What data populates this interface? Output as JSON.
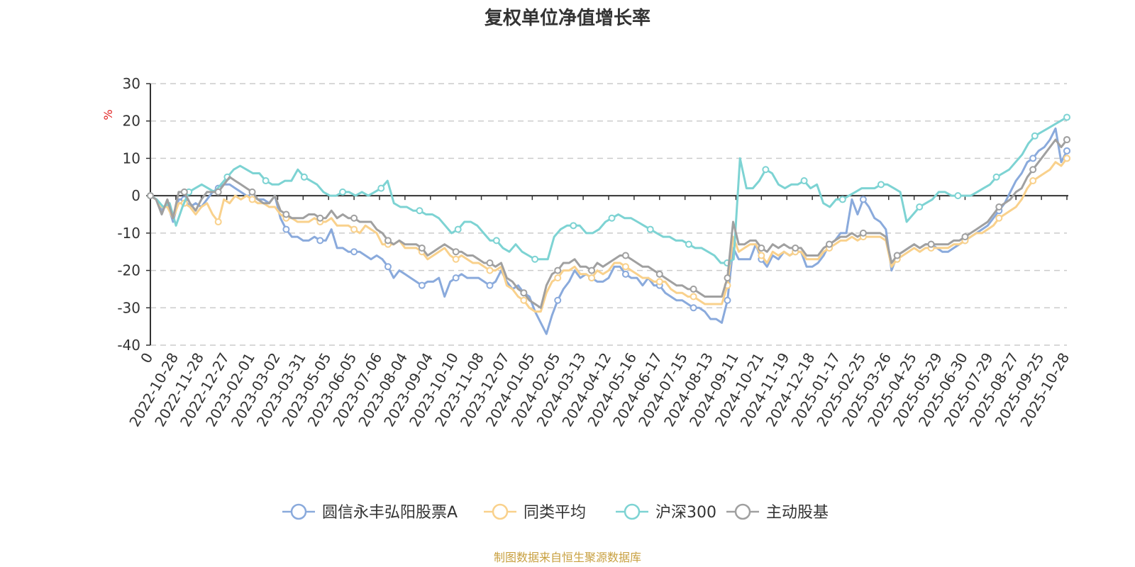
{
  "chart_data": {
    "type": "line",
    "title": "复权单位净值增长率",
    "ylabel": "%",
    "xlabel": "",
    "ylim": [
      -40,
      30
    ],
    "yticks": [
      30,
      20,
      10,
      0,
      -10,
      -20,
      -30,
      -40
    ],
    "x_tick_labels": [
      "0",
      "2022-10-28",
      "2022-11-28",
      "2022-12-27",
      "2023-02-01",
      "2023-03-02",
      "2023-03-31",
      "2023-05-05",
      "2023-06-05",
      "2023-07-06",
      "2023-08-04",
      "2023-09-04",
      "2023-10-10",
      "2023-11-08",
      "2023-12-07",
      "2024-01-05",
      "2024-02-05",
      "2024-03-13",
      "2024-04-12",
      "2024-05-16",
      "2024-06-17",
      "2024-07-15",
      "2024-08-13",
      "2024-09-11",
      "2024-10-21",
      "2024-11-19",
      "2024-12-18",
      "2025-01-17",
      "2025-02-25",
      "2025-03-26",
      "2025-04-25",
      "2025-05-29",
      "2025-06-30",
      "2025-07-29",
      "2025-08-27",
      "2025-09-25",
      "2025-10-28"
    ],
    "grid": true,
    "legend_position": "bottom",
    "series": [
      {
        "name": "圆信永丰弘阳股票A",
        "color": "#8aaadc",
        "values": [
          0,
          -1,
          -4,
          -2,
          -7,
          -1,
          -1,
          -3,
          -2,
          -3,
          -1,
          1,
          2,
          3,
          3,
          2,
          1,
          0,
          0,
          -1,
          -1,
          -2,
          0,
          -6,
          -9,
          -11,
          -11,
          -12,
          -12,
          -11,
          -12,
          -12,
          -9,
          -14,
          -14,
          -15,
          -15,
          -15,
          -16,
          -17,
          -16,
          -17,
          -19,
          -22,
          -20,
          -21,
          -22,
          -23,
          -24,
          -23,
          -23,
          -22,
          -27,
          -23,
          -22,
          -21,
          -22,
          -22,
          -22,
          -23,
          -24,
          -23,
          -20,
          -23,
          -25,
          -24,
          -26,
          -27,
          -31,
          -34,
          -37,
          -32,
          -28,
          -25,
          -23,
          -20,
          -22,
          -21,
          -22,
          -23,
          -23,
          -22,
          -19,
          -19,
          -21,
          -22,
          -22,
          -24,
          -22,
          -24,
          -24,
          -26,
          -27,
          -28,
          -28,
          -29,
          -30,
          -30,
          -31,
          -33,
          -33,
          -34,
          -28,
          -14,
          -17,
          -17,
          -17,
          -13,
          -17,
          -19,
          -16,
          -17,
          -15,
          -16,
          -15,
          -15,
          -19,
          -19,
          -18,
          -16,
          -13,
          -12,
          -10,
          -10,
          -1,
          -5,
          -1,
          -3,
          -6,
          -7,
          -9,
          -20,
          -16,
          -15,
          -14,
          -13,
          -14,
          -13,
          -13,
          -14,
          -15,
          -15,
          -14,
          -13,
          -12,
          -11,
          -10,
          -9,
          -8,
          -6,
          -4,
          -2,
          1,
          4,
          6,
          9,
          10,
          12,
          13,
          15,
          18,
          9,
          12
        ]
      },
      {
        "name": "同类平均",
        "color": "#f9d18c",
        "values": [
          0,
          -1,
          -3,
          -3,
          -6,
          -2,
          -2,
          -3,
          -5,
          -3,
          -2,
          -5,
          -7,
          -1,
          -2,
          0,
          -1,
          0,
          -1,
          -2,
          -2,
          -3,
          -3,
          -5,
          -6,
          -6,
          -7,
          -7,
          -7,
          -6,
          -7,
          -7,
          -6,
          -8,
          -8,
          -8,
          -9,
          -10,
          -8,
          -9,
          -10,
          -13,
          -13,
          -13,
          -12,
          -14,
          -14,
          -14,
          -15,
          -17,
          -16,
          -15,
          -14,
          -16,
          -17,
          -16,
          -17,
          -18,
          -18,
          -19,
          -20,
          -20,
          -19,
          -24,
          -25,
          -27,
          -28,
          -30,
          -31,
          -31,
          -26,
          -23,
          -22,
          -20,
          -20,
          -19,
          -21,
          -21,
          -22,
          -20,
          -21,
          -20,
          -18,
          -18,
          -19,
          -20,
          -21,
          -22,
          -22,
          -23,
          -23,
          -23,
          -25,
          -26,
          -26,
          -27,
          -27,
          -28,
          -29,
          -29,
          -29,
          -29,
          -24,
          -11,
          -15,
          -14,
          -13,
          -13,
          -16,
          -18,
          -15,
          -16,
          -15,
          -16,
          -15,
          -15,
          -17,
          -17,
          -17,
          -15,
          -14,
          -13,
          -12,
          -12,
          -11,
          -12,
          -11,
          -11,
          -11,
          -11,
          -12,
          -19,
          -17,
          -16,
          -15,
          -14,
          -15,
          -14,
          -14,
          -14,
          -14,
          -14,
          -13,
          -13,
          -12,
          -11,
          -10,
          -10,
          -9,
          -8,
          -6,
          -5,
          -4,
          -3,
          -1,
          2,
          4,
          5,
          6,
          7,
          9,
          8,
          10
        ]
      },
      {
        "name": "沪深300",
        "color": "#7dd3d3",
        "values": [
          0,
          -1,
          -3,
          -2,
          -8,
          -3,
          1,
          2,
          3,
          2,
          1,
          3,
          5,
          7,
          8,
          7,
          6,
          6,
          4,
          3,
          3,
          4,
          4,
          7,
          5,
          4,
          3,
          1,
          0,
          0,
          1,
          1,
          0,
          1,
          0,
          1,
          2,
          4,
          -2,
          -3,
          -3,
          -4,
          -4,
          -5,
          -5,
          -6,
          -8,
          -10,
          -9,
          -7,
          -7,
          -8,
          -10,
          -12,
          -12,
          -14,
          -15,
          -13,
          -15,
          -16,
          -17,
          -17,
          -17,
          -11,
          -9,
          -8,
          -8,
          -8,
          -10,
          -10,
          -9,
          -7,
          -6,
          -5,
          -6,
          -6,
          -7,
          -8,
          -9,
          -10,
          -11,
          -11,
          -12,
          -12,
          -13,
          -14,
          -14,
          -15,
          -16,
          -18,
          -18,
          -17,
          10,
          2,
          2,
          4,
          7,
          6,
          3,
          2,
          3,
          3,
          4,
          2,
          3,
          -2,
          -3,
          -1,
          -1,
          0,
          1,
          2,
          2,
          2,
          3,
          3,
          2,
          1,
          -7,
          -5,
          -3,
          -2,
          -1,
          1,
          1,
          0,
          0,
          0,
          0,
          1,
          2,
          3,
          5,
          6,
          7,
          9,
          11,
          14,
          16,
          17,
          18,
          19,
          20,
          21
        ]
      },
      {
        "name": "主动股基",
        "color": "#a0a0a0",
        "values": [
          0,
          -1,
          -5,
          -1,
          -6,
          1,
          1,
          -2,
          -4,
          -1,
          1,
          1,
          1,
          3,
          5,
          4,
          3,
          2,
          1,
          -1,
          -2,
          -2,
          0,
          -4,
          -5,
          -6,
          -6,
          -6,
          -5,
          -5,
          -6,
          -6,
          -4,
          -6,
          -5,
          -6,
          -6,
          -7,
          -7,
          -7,
          -9,
          -10,
          -12,
          -13,
          -12,
          -13,
          -13,
          -13,
          -14,
          -16,
          -15,
          -14,
          -13,
          -14,
          -15,
          -15,
          -16,
          -16,
          -17,
          -18,
          -18,
          -19,
          -18,
          -22,
          -23,
          -25,
          -26,
          -28,
          -29,
          -30,
          -24,
          -21,
          -20,
          -18,
          -18,
          -17,
          -19,
          -19,
          -20,
          -18,
          -19,
          -18,
          -17,
          -16,
          -16,
          -17,
          -18,
          -19,
          -19,
          -20,
          -21,
          -22,
          -23,
          -24,
          -24,
          -25,
          -25,
          -26,
          -27,
          -27,
          -27,
          -27,
          -22,
          -7,
          -13,
          -13,
          -12,
          -12,
          -14,
          -15,
          -13,
          -14,
          -13,
          -14,
          -14,
          -14,
          -16,
          -16,
          -16,
          -14,
          -13,
          -12,
          -11,
          -11,
          -10,
          -11,
          -10,
          -10,
          -10,
          -10,
          -11,
          -18,
          -16,
          -15,
          -14,
          -13,
          -14,
          -13,
          -13,
          -13,
          -13,
          -13,
          -12,
          -12,
          -11,
          -10,
          -9,
          -8,
          -7,
          -5,
          -3,
          -2,
          -1,
          1,
          2,
          5,
          7,
          9,
          11,
          13,
          15,
          13,
          15
        ]
      }
    ]
  },
  "legend": {
    "items": [
      "圆信永丰弘阳股票A",
      "同类平均",
      "沪深300",
      "主动股基"
    ]
  },
  "source": "制图数据来自恒生聚源数据库"
}
